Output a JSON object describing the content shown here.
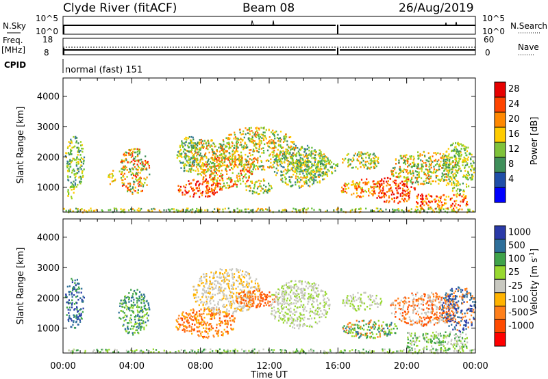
{
  "header": {
    "station": "Clyde River (fitACF)",
    "beam": "Beam 08",
    "date": "26/Aug/2019"
  },
  "strip_left": {
    "nsky_label": "N.Sky",
    "nsky_ticks": [
      "10^5",
      "10^0"
    ],
    "freq_label": "Freq.",
    "freq_unit": "[MHz]",
    "freq_ticks": [
      "18",
      "8"
    ],
    "cpid_label": "CPID"
  },
  "strip_right": {
    "nsearch_label": "N.Search",
    "nsearch_ticks": [
      "10^5",
      "10^0"
    ],
    "nave_label": "Nave",
    "nave_ticks": [
      "60",
      "0"
    ]
  },
  "cpid_text": "normal (fast) 151",
  "colors": {
    "power": [
      "#0000ff",
      "#1a46a8",
      "#3a7a9a",
      "#3f8f5a",
      "#5fbf3a",
      "#9fd21e",
      "#ffcc00",
      "#ff9900",
      "#ff6600",
      "#ff2200",
      "#e60000"
    ],
    "velocity_scale": [
      "#ff0000",
      "#ff4a00",
      "#ff7f1a",
      "#ffb300",
      "#c8c8c0",
      "#98d830",
      "#3fa34a",
      "#2e6f9a",
      "#2a3aa8"
    ]
  },
  "chart_data": [
    {
      "type": "heatmap",
      "name": "power",
      "xlabel": "",
      "ylabel": "Slant Range [km]",
      "x_ticks": [
        "00:00",
        "04:00",
        "08:00",
        "12:00",
        "16:00",
        "20:00",
        "00:00"
      ],
      "y_ticks": [
        "1000",
        "2000",
        "3000",
        "4000"
      ],
      "xlim": [
        0,
        24
      ],
      "ylim": [
        180,
        4600
      ],
      "colorbar_label": "Power [dB]",
      "colorbar_ticks": [
        "28",
        "24",
        "20",
        "16",
        "12",
        "8",
        "4"
      ],
      "colorbar_range": [
        0,
        32
      ]
    },
    {
      "type": "heatmap",
      "name": "velocity",
      "xlabel": "Time UT",
      "ylabel": "Slant Range [km]",
      "x_ticks": [
        "00:00",
        "04:00",
        "08:00",
        "12:00",
        "16:00",
        "20:00",
        "00:00"
      ],
      "y_ticks": [
        "1000",
        "2000",
        "3000",
        "4000"
      ],
      "xlim": [
        0,
        24
      ],
      "ylim": [
        180,
        4600
      ],
      "colorbar_label": "Velocity [m s^-1]",
      "colorbar_ticks": [
        "1000",
        "500",
        "100",
        "25",
        "-25",
        "-100",
        "-500",
        "-1000"
      ]
    }
  ]
}
